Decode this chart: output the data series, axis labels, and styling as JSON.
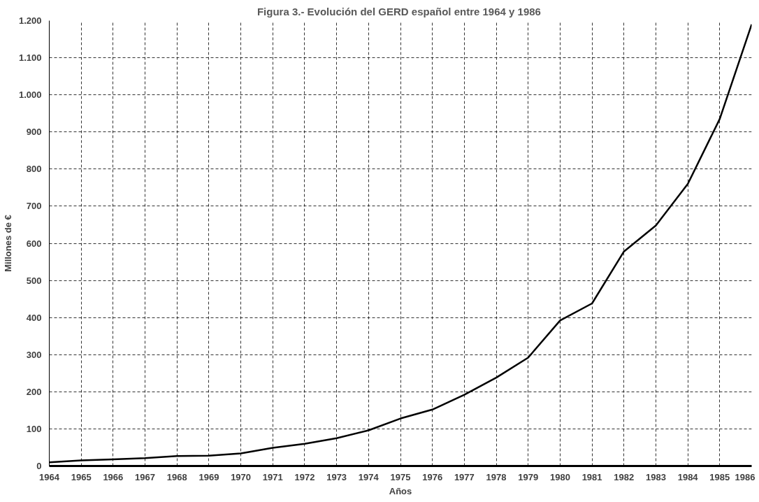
{
  "chart_data": {
    "type": "line",
    "title": "Figura 3.-  Evolución del GERD español entre 1964 y 1986",
    "xlabel": "Años",
    "ylabel": "Millones de €",
    "x": [
      1964,
      1965,
      1966,
      1967,
      1968,
      1969,
      1970,
      1971,
      1972,
      1973,
      1974,
      1975,
      1976,
      1977,
      1978,
      1979,
      1980,
      1981,
      1982,
      1983,
      1984,
      1985,
      1986
    ],
    "series": [
      {
        "color": "#000000",
        "values": [
          10,
          15,
          18,
          21,
          27,
          28,
          34,
          49,
          60,
          75,
          96,
          128,
          152,
          192,
          238,
          292,
          392,
          438,
          578,
          648,
          760,
          935,
          1190
        ]
      }
    ],
    "xlim": [
      1964,
      1986
    ],
    "xticks": [
      1964,
      1965,
      1966,
      1967,
      1968,
      1969,
      1970,
      1971,
      1972,
      1973,
      1974,
      1975,
      1976,
      1977,
      1978,
      1979,
      1980,
      1981,
      1982,
      1983,
      1984,
      1985,
      1986
    ],
    "ylim": [
      0,
      1200
    ],
    "yticks": [
      0,
      100,
      200,
      300,
      400,
      500,
      600,
      700,
      800,
      900,
      {
        "value": 1000,
        "label": "1.000"
      },
      {
        "value": 1100,
        "label": "1.100"
      },
      {
        "value": 1200,
        "label": "1.200"
      }
    ],
    "grid": true,
    "marker": "none",
    "line_style": "solid"
  }
}
